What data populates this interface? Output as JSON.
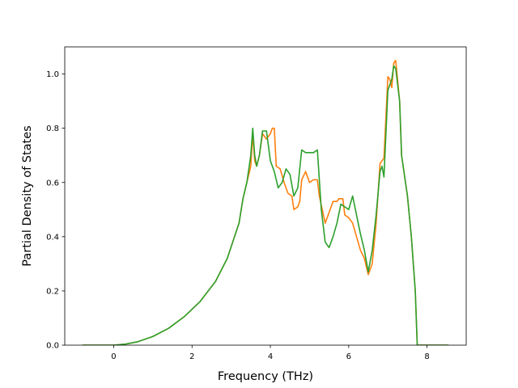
{
  "chart_data": {
    "type": "line",
    "xlabel": "Frequency (THz)",
    "ylabel": "Partial Density of States",
    "xlim": [
      -1.25,
      9.0
    ],
    "ylim": [
      0.0,
      1.1
    ],
    "xticks": [
      0,
      2,
      4,
      6,
      8
    ],
    "yticks": [
      0.0,
      0.2,
      0.4,
      0.6,
      0.8,
      1.0
    ],
    "grid": false,
    "legend": "none",
    "series": [
      {
        "color": "#ff7f0e",
        "points": [
          [
            -0.8,
            0.0
          ],
          [
            0.0,
            0.0
          ],
          [
            0.3,
            0.004
          ],
          [
            0.6,
            0.012
          ],
          [
            1.0,
            0.032
          ],
          [
            1.4,
            0.062
          ],
          [
            1.8,
            0.105
          ],
          [
            2.2,
            0.16
          ],
          [
            2.6,
            0.235
          ],
          [
            2.9,
            0.32
          ],
          [
            3.2,
            0.45
          ],
          [
            3.3,
            0.54
          ],
          [
            3.4,
            0.6
          ],
          [
            3.5,
            0.66
          ],
          [
            3.55,
            0.78
          ],
          [
            3.6,
            0.68
          ],
          [
            3.65,
            0.66
          ],
          [
            3.72,
            0.7
          ],
          [
            3.8,
            0.78
          ],
          [
            3.9,
            0.76
          ],
          [
            4.0,
            0.78
          ],
          [
            4.05,
            0.8
          ],
          [
            4.1,
            0.8
          ],
          [
            4.15,
            0.66
          ],
          [
            4.25,
            0.65
          ],
          [
            4.35,
            0.6
          ],
          [
            4.45,
            0.56
          ],
          [
            4.55,
            0.55
          ],
          [
            4.6,
            0.5
          ],
          [
            4.7,
            0.51
          ],
          [
            4.75,
            0.53
          ],
          [
            4.8,
            0.61
          ],
          [
            4.9,
            0.64
          ],
          [
            5.0,
            0.6
          ],
          [
            5.1,
            0.61
          ],
          [
            5.2,
            0.61
          ],
          [
            5.25,
            0.55
          ],
          [
            5.4,
            0.45
          ],
          [
            5.5,
            0.49
          ],
          [
            5.6,
            0.53
          ],
          [
            5.7,
            0.53
          ],
          [
            5.75,
            0.54
          ],
          [
            5.85,
            0.54
          ],
          [
            5.9,
            0.48
          ],
          [
            6.0,
            0.47
          ],
          [
            6.1,
            0.45
          ],
          [
            6.2,
            0.4
          ],
          [
            6.3,
            0.35
          ],
          [
            6.4,
            0.32
          ],
          [
            6.5,
            0.26
          ],
          [
            6.6,
            0.3
          ],
          [
            6.7,
            0.45
          ],
          [
            6.8,
            0.67
          ],
          [
            6.9,
            0.69
          ],
          [
            7.0,
            0.99
          ],
          [
            7.05,
            0.98
          ],
          [
            7.1,
            0.95
          ],
          [
            7.15,
            1.04
          ],
          [
            7.2,
            1.05
          ],
          [
            7.3,
            0.9
          ],
          [
            7.35,
            0.7
          ],
          [
            7.5,
            0.55
          ],
          [
            7.6,
            0.4
          ],
          [
            7.7,
            0.2
          ],
          [
            7.75,
            0.0
          ],
          [
            7.8,
            0.0
          ],
          [
            8.55,
            0.0
          ]
        ]
      },
      {
        "color": "#2ca02c",
        "points": [
          [
            -0.8,
            0.0
          ],
          [
            0.0,
            0.0
          ],
          [
            0.3,
            0.004
          ],
          [
            0.6,
            0.012
          ],
          [
            1.0,
            0.032
          ],
          [
            1.4,
            0.062
          ],
          [
            1.8,
            0.105
          ],
          [
            2.2,
            0.16
          ],
          [
            2.6,
            0.235
          ],
          [
            2.9,
            0.32
          ],
          [
            3.2,
            0.45
          ],
          [
            3.3,
            0.54
          ],
          [
            3.4,
            0.6
          ],
          [
            3.5,
            0.7
          ],
          [
            3.55,
            0.8
          ],
          [
            3.6,
            0.7
          ],
          [
            3.65,
            0.66
          ],
          [
            3.72,
            0.7
          ],
          [
            3.8,
            0.79
          ],
          [
            3.9,
            0.79
          ],
          [
            4.0,
            0.68
          ],
          [
            4.1,
            0.64
          ],
          [
            4.2,
            0.58
          ],
          [
            4.3,
            0.6
          ],
          [
            4.4,
            0.65
          ],
          [
            4.5,
            0.63
          ],
          [
            4.6,
            0.55
          ],
          [
            4.7,
            0.58
          ],
          [
            4.8,
            0.72
          ],
          [
            4.9,
            0.71
          ],
          [
            5.0,
            0.71
          ],
          [
            5.1,
            0.71
          ],
          [
            5.2,
            0.72
          ],
          [
            5.3,
            0.5
          ],
          [
            5.4,
            0.38
          ],
          [
            5.5,
            0.36
          ],
          [
            5.6,
            0.4
          ],
          [
            5.7,
            0.45
          ],
          [
            5.8,
            0.52
          ],
          [
            5.9,
            0.51
          ],
          [
            6.0,
            0.5
          ],
          [
            6.1,
            0.55
          ],
          [
            6.2,
            0.48
          ],
          [
            6.3,
            0.41
          ],
          [
            6.4,
            0.35
          ],
          [
            6.5,
            0.27
          ],
          [
            6.6,
            0.35
          ],
          [
            6.7,
            0.48
          ],
          [
            6.8,
            0.64
          ],
          [
            6.85,
            0.66
          ],
          [
            6.9,
            0.62
          ],
          [
            7.0,
            0.94
          ],
          [
            7.1,
            0.98
          ],
          [
            7.15,
            1.03
          ],
          [
            7.2,
            1.02
          ],
          [
            7.3,
            0.9
          ],
          [
            7.35,
            0.7
          ],
          [
            7.5,
            0.55
          ],
          [
            7.6,
            0.4
          ],
          [
            7.7,
            0.2
          ],
          [
            7.75,
            0.0
          ],
          [
            7.8,
            0.0
          ],
          [
            8.55,
            0.0
          ]
        ]
      }
    ]
  }
}
